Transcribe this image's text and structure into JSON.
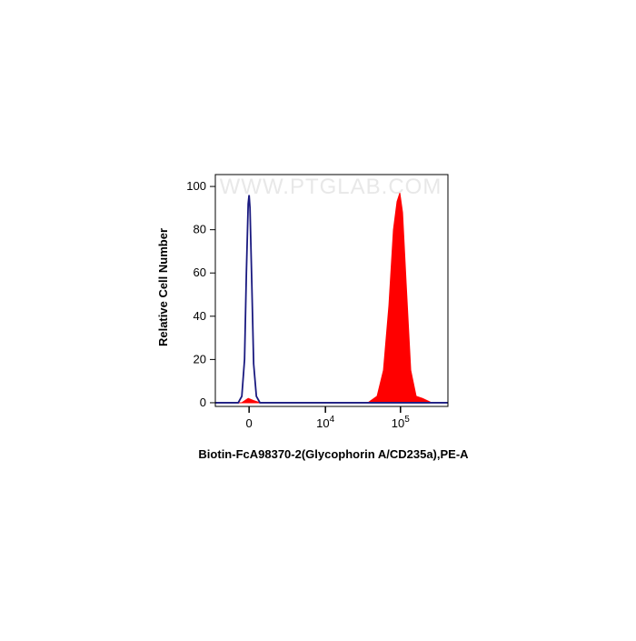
{
  "chart_data": {
    "type": "area",
    "watermark": "WWW.PTGLAB.COM",
    "x_label": "Biotin-FcA98370-2(Glycophorin A/CD235a),PE-A",
    "y_label": "Relative Cell Number",
    "xscale": "biexponential",
    "xlim": [
      -2400,
      426000
    ],
    "xticks": [
      0,
      {
        "value": 10000,
        "label": "10",
        "exponent": "4"
      },
      {
        "value": 100000,
        "label": "10",
        "exponent": "5"
      }
    ],
    "ylim": [
      -1.7,
      105.5
    ],
    "yticks": [
      0,
      20,
      40,
      60,
      80,
      100
    ],
    "series": [
      {
        "style": "fill",
        "color": "#ff0000",
        "x": [
          -2400,
          -439,
          -54,
          273,
          664,
          37000,
          48900,
          59400,
          70200,
          80600,
          90000,
          98000,
          106500,
          119000,
          136800,
          161400,
          196000,
          258700,
          426000
        ],
        "values": [
          0,
          0,
          2,
          1,
          0,
          0,
          3,
          15,
          45,
          80,
          93,
          97,
          88,
          55,
          15,
          3,
          2,
          0,
          0
        ]
      },
      {
        "style": "line",
        "color": "#1a1a80",
        "x": [
          -2400,
          -664,
          -439,
          -273,
          -163,
          -54,
          0,
          54,
          163,
          273,
          439,
          664,
          426000
        ],
        "values": [
          0,
          0,
          3,
          20,
          60,
          92,
          96,
          90,
          55,
          18,
          3,
          0,
          0
        ]
      }
    ]
  }
}
